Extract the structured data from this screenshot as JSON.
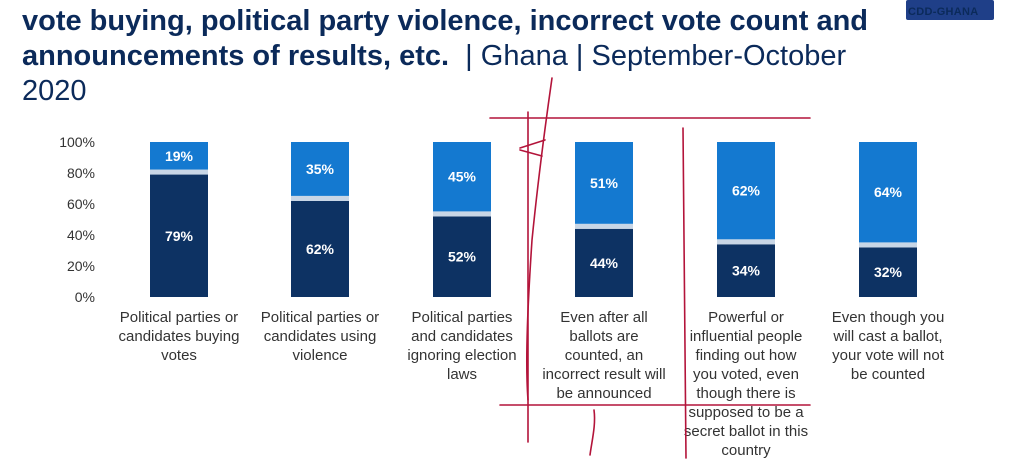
{
  "title": {
    "line1_bold": "vote buying, political party violence, incorrect vote count and",
    "line2_bold": "announcements of results, etc.",
    "line2_rest": "| Ghana  | September-October",
    "line3": "2020"
  },
  "logo": {
    "text": "CDD-GHANA"
  },
  "colors": {
    "bottom": "#0d3263",
    "top": "#1479d0",
    "separator": "#c8d6e6",
    "annotation": "#b3143a"
  },
  "chart_data": {
    "type": "bar",
    "stacked": true,
    "ylim": [
      0,
      100
    ],
    "yticks": [
      "0%",
      "20%",
      "40%",
      "60%",
      "80%",
      "100%"
    ],
    "categories": [
      [
        "Political parties or",
        "candidates buying",
        "votes"
      ],
      [
        "Political parties or",
        "candidates using",
        "violence"
      ],
      [
        "Political parties",
        "and candidates",
        "ignoring election",
        "laws"
      ],
      [
        "Even after all",
        "ballots are",
        "counted, an",
        "incorrect result will",
        "be announced"
      ],
      [
        "Powerful or",
        "influential people",
        "finding out how",
        "you voted, even",
        "though there is",
        "supposed to be a",
        "secret ballot in this",
        "country"
      ],
      [
        "Even though you",
        "will cast a ballot,",
        "your vote will not",
        "be counted"
      ]
    ],
    "series": [
      {
        "values": [
          79,
          62,
          52,
          44,
          34,
          32
        ],
        "labels": [
          "79%",
          "62%",
          "52%",
          "44%",
          "34%",
          "32%"
        ]
      },
      {
        "values": [
          19,
          35,
          45,
          51,
          62,
          64
        ],
        "labels": [
          "19%",
          "35%",
          "45%",
          "51%",
          "62%",
          "64%"
        ]
      }
    ],
    "grid": false
  }
}
